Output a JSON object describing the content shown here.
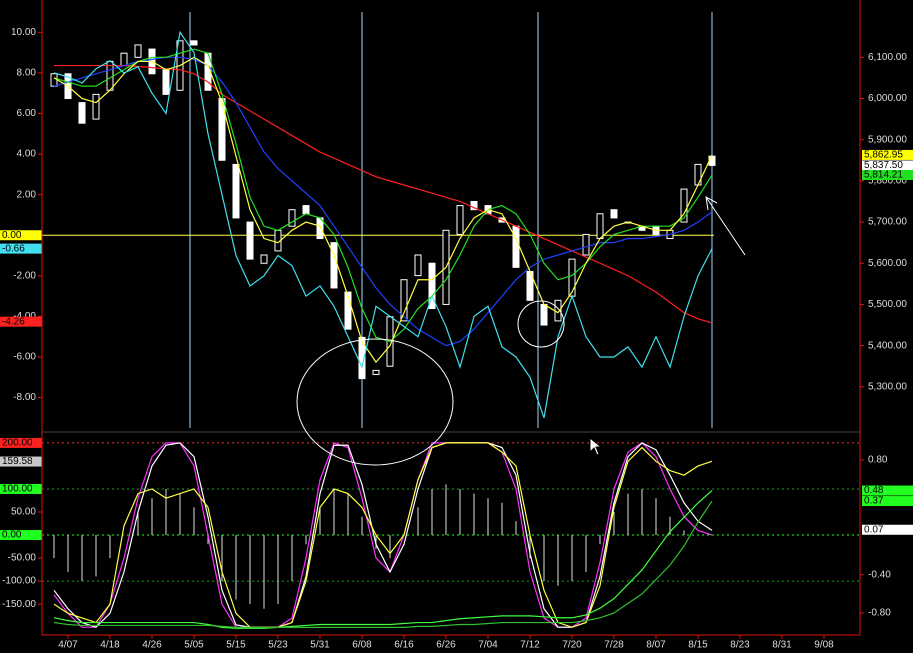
{
  "chart_data": [
    {
      "type": "candlestick",
      "categories": [
        null,
        "4/07",
        null,
        null,
        "4/18",
        null,
        null,
        "4/26",
        null,
        null,
        "5/05",
        null,
        null,
        "5/15",
        null,
        null,
        "5/23",
        null,
        null,
        "5/31",
        null,
        null,
        "6/08",
        null,
        null,
        "6/16",
        null,
        null,
        "6/26",
        null,
        null,
        "7/04",
        null,
        null,
        "7/12",
        null,
        null,
        "7/20",
        null,
        null,
        "7/28",
        null,
        null,
        "8/07",
        null,
        null,
        "8/15",
        null,
        null,
        "8/23",
        null,
        null,
        "8/31",
        null,
        null,
        "9/08",
        null,
        null
      ],
      "open": [
        6030,
        6060,
        5990,
        5950,
        6020,
        6080,
        6100,
        6120,
        6070,
        6020,
        6140,
        6110,
        6000,
        5840,
        5700,
        5600,
        5630,
        5690,
        5740,
        5710,
        5650,
        5530,
        5420,
        5330,
        5350,
        5460,
        5570,
        5600,
        5500,
        5670,
        5750,
        5740,
        5710,
        5690,
        5580,
        5500,
        5460,
        5520,
        5620,
        5660,
        5730,
        5700,
        5690,
        5690,
        5660,
        5700,
        5790,
        5860,
        null,
        null,
        null,
        null,
        null,
        null,
        null,
        null,
        null,
        null
      ],
      "close": [
        6060,
        6000,
        5940,
        6010,
        6090,
        6110,
        6130,
        6060,
        6010,
        6140,
        6130,
        6020,
        5850,
        5710,
        5610,
        5620,
        5680,
        5730,
        5720,
        5660,
        5540,
        5440,
        5320,
        5340,
        5470,
        5560,
        5620,
        5490,
        5680,
        5740,
        5730,
        5720,
        5700,
        5590,
        5510,
        5450,
        5510,
        5610,
        5670,
        5720,
        5710,
        5700,
        5680,
        5670,
        5680,
        5780,
        5840,
        5837.5,
        null,
        null,
        null,
        null,
        null,
        null,
        null,
        null,
        null,
        null
      ],
      "candle_color": "#ffffff",
      "series": [
        {
          "color": "#ff2020",
          "axis": "y2",
          "values": [
            6080,
            6080,
            6080,
            6080,
            6080,
            6080,
            6078,
            6075,
            6072,
            6070,
            6060,
            6040,
            6010,
            5990,
            5970,
            5950,
            5930,
            5910,
            5890,
            5870,
            5855,
            5840,
            5825,
            5810,
            5800,
            5790,
            5780,
            5770,
            5760,
            5750,
            5735,
            5720,
            5705,
            5690,
            5675,
            5660,
            5645,
            5630,
            5615,
            5600,
            5585,
            5570,
            5550,
            5530,
            5505,
            5480,
            5465,
            5455,
            null,
            null,
            null,
            null,
            null,
            null,
            null,
            null,
            null,
            null
          ]
        },
        {
          "color": "#2040ff",
          "axis": "y2",
          "values": [
            6030,
            6040,
            6050,
            6060,
            6070,
            6080,
            6090,
            6095,
            6100,
            6100,
            6095,
            6080,
            6040,
            5990,
            5930,
            5870,
            5830,
            5800,
            5770,
            5740,
            5690,
            5640,
            5590,
            5540,
            5500,
            5470,
            5440,
            5420,
            5400,
            5410,
            5440,
            5480,
            5520,
            5560,
            5590,
            5610,
            5620,
            5630,
            5640,
            5650,
            5650,
            5660,
            5660,
            5665,
            5670,
            5680,
            5700,
            5725,
            null,
            null,
            null,
            null,
            null,
            null,
            null,
            null,
            null,
            null
          ]
        },
        {
          "color": "#20e020",
          "axis": "y2",
          "values": [
            6050,
            6040,
            6030,
            6030,
            6050,
            6070,
            6090,
            6100,
            6100,
            6110,
            6120,
            6110,
            6010,
            5890,
            5760,
            5690,
            5680,
            5700,
            5720,
            5710,
            5670,
            5590,
            5490,
            5420,
            5410,
            5440,
            5490,
            5520,
            5560,
            5620,
            5690,
            5730,
            5740,
            5720,
            5670,
            5600,
            5560,
            5570,
            5600,
            5640,
            5670,
            5680,
            5690,
            5690,
            5690,
            5710,
            5760,
            5814.21,
            null,
            null,
            null,
            null,
            null,
            null,
            null,
            null,
            null,
            null
          ]
        },
        {
          "color": "#ffff40",
          "axis": "y2",
          "values": [
            6050,
            6030,
            6000,
            5990,
            6020,
            6060,
            6090,
            6090,
            6070,
            6080,
            6100,
            6080,
            5990,
            5860,
            5730,
            5660,
            5650,
            5680,
            5700,
            5690,
            5620,
            5520,
            5410,
            5360,
            5400,
            5480,
            5560,
            5560,
            5590,
            5660,
            5710,
            5730,
            5720,
            5660,
            5580,
            5500,
            5480,
            5530,
            5600,
            5660,
            5690,
            5700,
            5690,
            5680,
            5680,
            5720,
            5790,
            5862.95,
            null,
            null,
            null,
            null,
            null,
            null,
            null,
            null,
            null,
            null
          ]
        },
        {
          "color": "#40e0f0",
          "axis": "y",
          "values": [
            8,
            7.8,
            7.5,
            8.2,
            8.6,
            8,
            8.3,
            7,
            6,
            10,
            9,
            5,
            2,
            -1,
            -2.5,
            -2,
            -1,
            -1.5,
            -3,
            -2.5,
            -3.5,
            -5,
            -6.5,
            -3.5,
            -4,
            -4.5,
            -5,
            -3,
            -4.5,
            -6.5,
            -4,
            -3.5,
            -5.5,
            -6,
            -7,
            -9,
            -5,
            -3,
            -5,
            -6,
            -6,
            -5.5,
            -6.5,
            -5,
            -6.5,
            -4,
            -2,
            -0.66,
            null,
            null,
            null,
            null,
            null,
            null,
            null,
            null,
            null,
            null
          ]
        }
      ],
      "ylim": [
        -9.5,
        11
      ],
      "yticks": [
        {
          "value": 10,
          "label": "10.00"
        },
        {
          "value": 8,
          "label": "8.00"
        },
        {
          "value": 6,
          "label": "6.00"
        },
        {
          "value": 4,
          "label": "4.00"
        },
        {
          "value": 2,
          "label": "2.00"
        },
        {
          "value": -2,
          "label": "-2.00"
        },
        {
          "value": -4,
          "label": "-4.00"
        },
        {
          "value": -6,
          "label": "-6.00"
        },
        {
          "value": -8,
          "label": "-8.00"
        }
      ],
      "y2lim": [
        5200,
        6210
      ],
      "y2ticks": [
        {
          "value": 6100,
          "label": "6,100.00"
        },
        {
          "value": 6000,
          "label": "6,000.00"
        },
        {
          "value": 5900,
          "label": "5,900.00"
        },
        {
          "value": 5800,
          "label": "5,800.00"
        },
        {
          "value": 5700,
          "label": "5,700.00"
        },
        {
          "value": 5600,
          "label": "5,600.00"
        },
        {
          "value": 5500,
          "label": "5,500.00"
        },
        {
          "value": 5400,
          "label": "5,400.00"
        },
        {
          "value": 5300,
          "label": "5,300.00"
        }
      ],
      "levels": [
        {
          "value": 0,
          "color": "#ffff40"
        }
      ],
      "badges_left": [
        {
          "value": 0,
          "label": "0.00",
          "color": "#ffff00"
        },
        {
          "value": -0.66,
          "label": "-0.66",
          "color": "#40e0f0"
        },
        {
          "value": -4.26,
          "label": "-4.26",
          "color": "#ff2020"
        }
      ],
      "badges_right": [
        {
          "value": 5862.95,
          "label": "5,862.95",
          "color": "#ffff00"
        },
        {
          "value": 5837.5,
          "label": "5,837.50",
          "color": "#ffffff"
        },
        {
          "value": 5814.21,
          "label": "5,814.21",
          "color": "#20e020"
        }
      ]
    },
    {
      "type": "line",
      "series": [
        {
          "color": "#e0e0e0",
          "axis": "y",
          "style": "bar",
          "values": [
            -50,
            -80,
            -100,
            -90,
            -50,
            0,
            50,
            80,
            100,
            90,
            60,
            -20,
            -100,
            -140,
            -150,
            -160,
            -150,
            -100,
            -20,
            60,
            100,
            90,
            40,
            -30,
            -50,
            0,
            60,
            100,
            110,
            100,
            90,
            80,
            70,
            30,
            -50,
            -100,
            -110,
            -100,
            -80,
            -20,
            50,
            90,
            100,
            80,
            40,
            10,
            0,
            0,
            null,
            null,
            null,
            null,
            null,
            null,
            null,
            null,
            null,
            null
          ]
        },
        {
          "color": "#ff30ff",
          "axis": "y",
          "values": [
            -130,
            -170,
            -200,
            -200,
            -150,
            -50,
            80,
            170,
            200,
            200,
            150,
            0,
            -150,
            -200,
            -200,
            -200,
            -200,
            -180,
            -50,
            120,
            200,
            190,
            80,
            -50,
            -80,
            0,
            120,
            200,
            200,
            200,
            200,
            200,
            180,
            100,
            -80,
            -180,
            -200,
            -200,
            -180,
            -60,
            100,
            180,
            200,
            170,
            100,
            40,
            10,
            0,
            null,
            null,
            null,
            null,
            null,
            null,
            null,
            null,
            null,
            null
          ]
        },
        {
          "color": "#ffffff",
          "axis": "y",
          "values": [
            -120,
            -160,
            -190,
            -200,
            -170,
            -80,
            50,
            150,
            195,
            200,
            170,
            40,
            -120,
            -195,
            -200,
            -200,
            -200,
            -190,
            -90,
            90,
            195,
            195,
            110,
            -20,
            -80,
            -20,
            100,
            190,
            200,
            200,
            200,
            200,
            190,
            130,
            -40,
            -160,
            -200,
            -200,
            -190,
            -90,
            70,
            170,
            200,
            185,
            130,
            70,
            30,
            10,
            null,
            null,
            null,
            null,
            null,
            null,
            null,
            null,
            null,
            null
          ]
        },
        {
          "color": "#ffff40",
          "axis": "y",
          "values": [
            -150,
            -170,
            -180,
            -190,
            -150,
            20,
            90,
            100,
            80,
            90,
            100,
            60,
            -80,
            -170,
            -200,
            -200,
            -200,
            -190,
            -100,
            60,
            100,
            90,
            60,
            0,
            -40,
            0,
            120,
            190,
            200,
            200,
            200,
            200,
            180,
            150,
            0,
            -120,
            -190,
            -200,
            -190,
            -110,
            60,
            160,
            190,
            160,
            140,
            130,
            150,
            160,
            null,
            null,
            null,
            null,
            null,
            null,
            null,
            null,
            null,
            null
          ]
        },
        {
          "color": "#40ff40",
          "axis": "y2",
          "values": [
            -0.85,
            -0.88,
            -0.9,
            -0.9,
            -0.9,
            -0.9,
            -0.9,
            -0.9,
            -0.9,
            -0.9,
            -0.9,
            -0.92,
            -0.95,
            -0.96,
            -0.96,
            -0.96,
            -0.95,
            -0.94,
            -0.93,
            -0.92,
            -0.92,
            -0.92,
            -0.92,
            -0.92,
            -0.92,
            -0.91,
            -0.9,
            -0.9,
            -0.88,
            -0.86,
            -0.85,
            -0.84,
            -0.83,
            -0.83,
            -0.83,
            -0.84,
            -0.85,
            -0.85,
            -0.82,
            -0.75,
            -0.65,
            -0.5,
            -0.35,
            -0.15,
            0.05,
            0.2,
            0.35,
            0.48,
            null,
            null,
            null,
            null,
            null,
            null,
            null,
            null,
            null,
            null
          ]
        },
        {
          "color": "#30c030",
          "axis": "y2",
          "values": [
            -0.9,
            -0.92,
            -0.93,
            -0.93,
            -0.93,
            -0.93,
            -0.93,
            -0.93,
            -0.93,
            -0.93,
            -0.93,
            -0.93,
            -0.94,
            -0.95,
            -0.95,
            -0.95,
            -0.95,
            -0.95,
            -0.95,
            -0.95,
            -0.95,
            -0.95,
            -0.95,
            -0.95,
            -0.95,
            -0.95,
            -0.94,
            -0.94,
            -0.93,
            -0.92,
            -0.92,
            -0.91,
            -0.9,
            -0.9,
            -0.9,
            -0.9,
            -0.9,
            -0.9,
            -0.88,
            -0.85,
            -0.8,
            -0.7,
            -0.6,
            -0.45,
            -0.3,
            -0.1,
            0.15,
            0.37,
            null,
            null,
            null,
            null,
            null,
            null,
            null,
            null,
            null,
            null
          ]
        }
      ],
      "ylim": [
        -217,
        215
      ],
      "yticks": [
        {
          "value": 50,
          "label": "50.00"
        },
        {
          "value": -50,
          "label": "-50.00"
        },
        {
          "value": -100,
          "label": "-100.00"
        },
        {
          "value": -150,
          "label": "-150.00"
        }
      ],
      "y2lim": [
        -1.03,
        1.05
      ],
      "y2ticks": [
        {
          "value": 0.8,
          "label": "0.80"
        },
        {
          "value": -0.4,
          "label": "-0.40"
        },
        {
          "value": -0.8,
          "label": "-0.80"
        }
      ],
      "levels": [
        {
          "value": 200,
          "color": "#ff3030"
        },
        {
          "value": 100,
          "color": "#20a020"
        },
        {
          "value": 0,
          "color": "#20ff20"
        },
        {
          "value": -100,
          "color": "#20a020"
        }
      ],
      "badges_left": [
        {
          "value": 200,
          "label": "200.00",
          "color": "#ff2020"
        },
        {
          "value": 159.58,
          "label": "159.58",
          "color": "#c8c8c8"
        },
        {
          "value": 100,
          "label": "100.00",
          "color": "#20ff20"
        },
        {
          "value": 0,
          "label": "0.00",
          "color": "#20ff20"
        }
      ],
      "badges_right": [
        {
          "value": 0.48,
          "label": "0.48",
          "color": "#20ff20"
        },
        {
          "value": 0.37,
          "label": "0.37",
          "color": "#20ff20"
        },
        {
          "value": 0.07,
          "label": "0.07",
          "color": "#ffffff"
        }
      ]
    }
  ]
}
